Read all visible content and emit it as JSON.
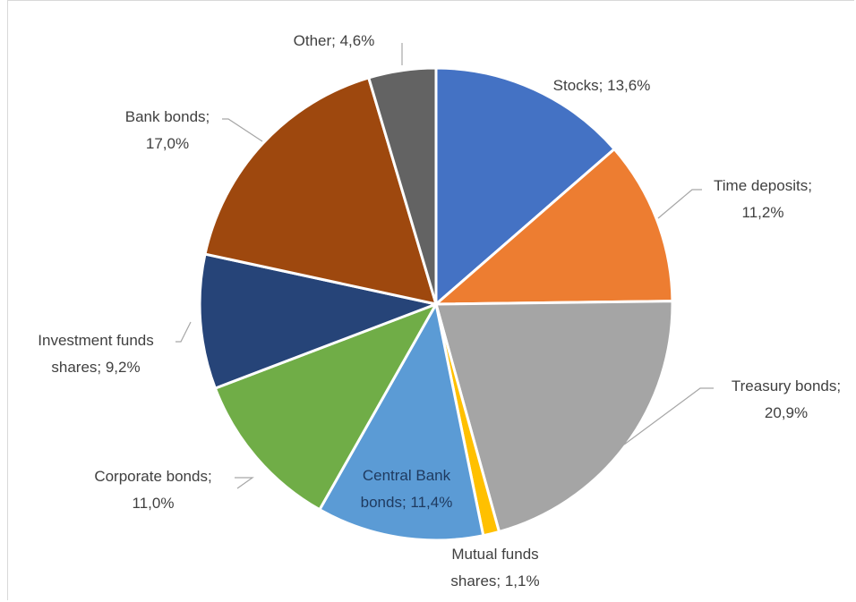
{
  "chart_data": {
    "type": "pie",
    "slices": [
      {
        "label": "Stocks; 13,6%",
        "value": 13.6,
        "color": "#4472c4"
      },
      {
        "label": "Time deposits; 11,2%",
        "value": 11.2,
        "color": "#ed7d31"
      },
      {
        "label": "Treasury bonds; 20,9%",
        "value": 20.9,
        "color": "#a5a5a5"
      },
      {
        "label": "Mutual funds shares; 1,1%",
        "value": 1.1,
        "color": "#ffc000"
      },
      {
        "label": "Central Bank bonds; 11,4%",
        "value": 11.4,
        "color": "#5b9bd5"
      },
      {
        "label": "Corporate bonds; 11,0%",
        "value": 11.0,
        "color": "#70ad47"
      },
      {
        "label": "Investment funds shares; 9,2%",
        "value": 9.2,
        "color": "#264478"
      },
      {
        "label": "Bank bonds; 17,0%",
        "value": 17.0,
        "color": "#9e480e"
      },
      {
        "label": "Other; 4,6%",
        "value": 4.6,
        "color": "#636363"
      }
    ],
    "label_lines": [
      [
        "Stocks; 13,6%"
      ],
      [
        "Time deposits;",
        "11,2%"
      ],
      [
        "Treasury bonds;",
        "20,9%"
      ],
      [
        "Mutual funds",
        "shares; 1,1%"
      ],
      [
        "Central Bank",
        "bonds; 11,4%"
      ],
      [
        "Corporate bonds;",
        "11,0%"
      ],
      [
        "Investment funds",
        "shares; 9,2%"
      ],
      [
        "Bank bonds;",
        "17,0%"
      ],
      [
        "Other; 4,6%"
      ]
    ],
    "title": "",
    "legend": "none"
  }
}
